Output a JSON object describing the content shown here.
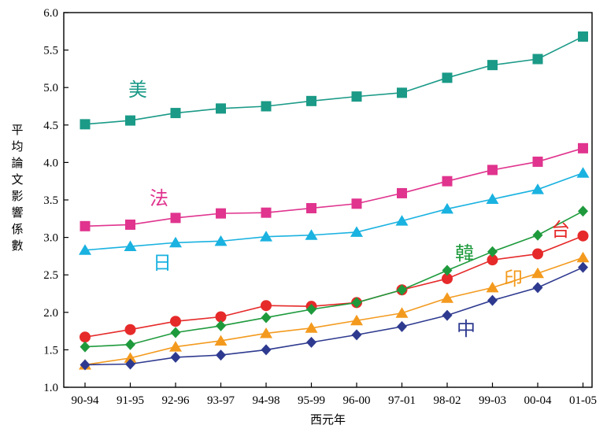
{
  "chart_data": {
    "type": "line",
    "title": "",
    "xlabel": "西元年",
    "ylabel": "平均論文影響係數",
    "ylim": [
      1.0,
      6.0
    ],
    "yticks": [
      1.0,
      1.5,
      2.0,
      2.5,
      3.0,
      3.5,
      4.0,
      4.5,
      5.0,
      5.5,
      6.0
    ],
    "ytick_labels": [
      "1.0",
      "1.5",
      "2.0",
      "2.5",
      "3.0",
      "3.5",
      "4.0",
      "4.5",
      "5.0",
      "5.5",
      "6.0"
    ],
    "grid": false,
    "legend": "inline labels",
    "categories": [
      "90-94",
      "91-95",
      "92-96",
      "93-97",
      "94-98",
      "95-99",
      "96-00",
      "97-01",
      "98-02",
      "99-03",
      "00-04",
      "01-05"
    ],
    "series": [
      {
        "name": "美",
        "color": "#1a9a87",
        "marker": "square",
        "values": [
          4.51,
          4.56,
          4.66,
          4.72,
          4.75,
          4.82,
          4.88,
          4.93,
          5.13,
          5.3,
          5.38,
          5.68
        ]
      },
      {
        "name": "法",
        "color": "#e0348e",
        "marker": "square",
        "values": [
          3.15,
          3.17,
          3.26,
          3.32,
          3.33,
          3.39,
          3.45,
          3.59,
          3.75,
          3.9,
          4.01,
          4.19
        ]
      },
      {
        "name": "日",
        "color": "#1ab2e0",
        "marker": "triangle",
        "values": [
          2.83,
          2.88,
          2.93,
          2.95,
          3.01,
          3.03,
          3.07,
          3.22,
          3.38,
          3.51,
          3.64,
          3.86
        ]
      },
      {
        "name": "台",
        "color": "#e62a2a",
        "marker": "circle",
        "values": [
          1.67,
          1.77,
          1.88,
          1.94,
          2.09,
          2.08,
          2.13,
          2.3,
          2.45,
          2.7,
          2.78,
          3.02
        ]
      },
      {
        "name": "韓",
        "color": "#1e9a3c",
        "marker": "diamond",
        "values": [
          1.54,
          1.57,
          1.73,
          1.82,
          1.93,
          2.04,
          2.13,
          2.3,
          2.56,
          2.81,
          3.03,
          3.35
        ]
      },
      {
        "name": "印",
        "color": "#f39a1e",
        "marker": "triangle",
        "values": [
          1.3,
          1.39,
          1.54,
          1.62,
          1.72,
          1.79,
          1.89,
          1.99,
          2.19,
          2.33,
          2.52,
          2.73
        ]
      },
      {
        "name": "中",
        "color": "#2e3a8f",
        "marker": "diamond",
        "values": [
          1.3,
          1.31,
          1.4,
          1.43,
          1.5,
          1.6,
          1.7,
          1.81,
          1.96,
          2.16,
          2.33,
          2.6
        ]
      }
    ]
  }
}
